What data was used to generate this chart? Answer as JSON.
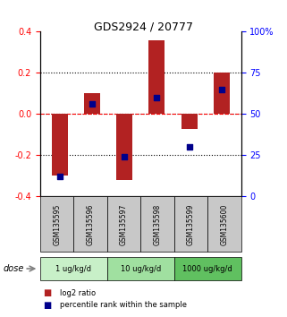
{
  "title": "GDS2924 / 20777",
  "samples": [
    "GSM135595",
    "GSM135596",
    "GSM135597",
    "GSM135598",
    "GSM135599",
    "GSM135600"
  ],
  "log2_ratio": [
    -0.3,
    0.1,
    -0.32,
    0.36,
    -0.07,
    0.2
  ],
  "percentile_rank": [
    12,
    56,
    24,
    60,
    30,
    65
  ],
  "bar_color": "#b22222",
  "dot_color": "#00008b",
  "ylim_left": [
    -0.4,
    0.4
  ],
  "ylim_right": [
    0,
    100
  ],
  "yticks_left": [
    -0.4,
    -0.2,
    0.0,
    0.2,
    0.4
  ],
  "yticks_right": [
    0,
    25,
    50,
    75,
    100
  ],
  "yticklabels_right": [
    "0",
    "25",
    "50",
    "75",
    "100%"
  ],
  "hlines_dotted": [
    -0.2,
    0.0,
    0.2
  ],
  "hline_red_dashed": 0.0,
  "dose_groups": [
    {
      "label": "1 ug/kg/d",
      "samples": [
        "GSM135595",
        "GSM135596"
      ],
      "color": "#c8f0c8"
    },
    {
      "label": "10 ug/kg/d",
      "samples": [
        "GSM135597",
        "GSM135598"
      ],
      "color": "#a0e0a0"
    },
    {
      "label": "1000 ug/kg/d",
      "samples": [
        "GSM135599",
        "GSM135600"
      ],
      "color": "#60c060"
    }
  ],
  "dose_label": "dose",
  "legend_items": [
    {
      "label": "log2 ratio",
      "color": "#b22222"
    },
    {
      "label": "percentile rank within the sample",
      "color": "#00008b"
    }
  ],
  "bar_width": 0.5,
  "sample_box_color": "#c8c8c8",
  "figure_bg": "#ffffff"
}
